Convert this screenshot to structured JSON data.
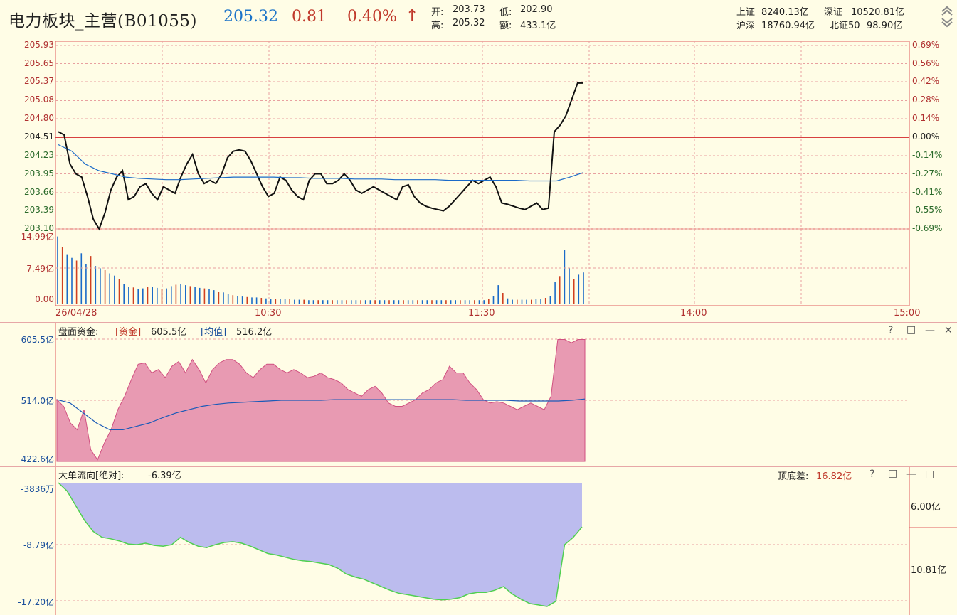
{
  "header": {
    "title": "电力板块_主营(B01055)",
    "price": "205.32",
    "change": "0.81",
    "change_pct": "0.40%",
    "arrow": "↑",
    "open_label": "开:",
    "open": "203.73",
    "low_label": "低:",
    "low": "202.90",
    "high_label": "高:",
    "high": "205.32",
    "amount_label": "额:",
    "amount": "433.1亿",
    "sh_label": "上证",
    "sh": "8240.13亿",
    "sz_label": "深证",
    "sz": "10520.81亿",
    "hs_label": "沪深",
    "hs": "18760.94亿",
    "bz_label": "北证50",
    "bz": "98.90亿"
  },
  "price_axis_left": [
    "205.93",
    "205.65",
    "205.37",
    "205.08",
    "204.80",
    "204.51",
    "204.23",
    "203.95",
    "203.66",
    "203.39",
    "203.10"
  ],
  "price_axis_right": [
    "0.69%",
    "0.56%",
    "0.42%",
    "0.28%",
    "0.14%",
    "0.00%",
    "-0.14%",
    "-0.27%",
    "-0.41%",
    "-0.55%",
    "-0.69%"
  ],
  "volume_axis": [
    "14.99亿",
    "7.49亿",
    "0.00"
  ],
  "time_axis": [
    "26/04/28",
    "10:30",
    "11:30",
    "14:00",
    "15:00"
  ],
  "fund_panel": {
    "label": "盘面资金:",
    "fund_label": "[资金]",
    "fund_value": "605.5亿",
    "avg_label": "[均值]",
    "avg_value": "516.2亿",
    "axis": [
      "605.5亿",
      "514.0亿",
      "422.6亿"
    ]
  },
  "big_order_panel": {
    "label": "大单流向[绝对]:",
    "value": "-6.39亿",
    "diff_label": "顶底差:",
    "diff_value": "16.82亿",
    "axis_left": [
      "-3836万",
      "-8.79亿",
      "-17.20亿"
    ],
    "axis_right": [
      "6.00亿",
      "10.81亿"
    ]
  },
  "buttons": {
    "help": "?",
    "restore": "□",
    "minimize": "—",
    "close": "✕"
  },
  "colors": {
    "accent_red": "#c0392b",
    "accent_blue": "#1a73c8",
    "fund_fill": "#e89ab2",
    "big_fill": "#bcbcee"
  },
  "chart_data": [
    {
      "type": "line",
      "title": "",
      "series": [
        {
          "name": "price",
          "values": [
            204.6,
            204.55,
            204.1,
            203.95,
            203.9,
            203.6,
            203.25,
            203.1,
            203.35,
            203.7,
            203.9,
            204.0,
            203.55,
            203.6,
            203.75,
            203.8,
            203.65,
            203.55,
            203.75,
            203.7,
            203.65,
            203.9,
            204.1,
            204.25,
            203.95,
            203.8,
            203.85,
            203.8,
            203.95,
            204.2,
            204.3,
            204.32,
            204.3,
            204.15,
            203.95,
            203.75,
            203.6,
            203.65,
            203.9,
            203.85,
            203.7,
            203.6,
            203.55,
            203.85,
            203.95,
            203.95,
            203.8,
            203.8,
            203.85,
            203.95,
            203.85,
            203.7,
            203.65,
            203.7,
            203.75,
            203.7,
            203.65,
            203.6,
            203.55,
            203.75,
            203.78,
            203.6,
            203.5,
            203.45,
            203.42,
            203.4,
            203.38,
            203.45,
            203.55,
            203.65,
            203.75,
            203.85,
            203.8,
            203.85,
            203.9,
            203.75,
            203.5,
            203.48,
            203.45,
            203.42,
            203.4,
            203.45,
            203.5,
            203.4,
            203.42,
            204.6,
            204.7,
            204.85,
            205.1,
            205.35,
            205.35
          ]
        },
        {
          "name": "avg",
          "values": [
            204.4,
            204.3,
            204.1,
            204.0,
            203.95,
            203.9,
            203.88,
            203.87,
            203.86,
            203.86,
            203.87,
            203.88,
            203.89,
            203.9,
            203.9,
            203.9,
            203.9,
            203.89,
            203.89,
            203.88,
            203.88,
            203.88,
            203.87,
            203.87,
            203.87,
            203.86,
            203.86,
            203.86,
            203.86,
            203.85,
            203.85,
            203.85,
            203.85,
            203.85,
            203.85,
            203.84,
            203.84,
            203.84,
            203.9,
            203.97
          ]
        }
      ],
      "ylim": [
        203.1,
        205.93
      ]
    },
    {
      "type": "bar",
      "title": "",
      "values": [
        14.9,
        12.5,
        11.0,
        10.2,
        9.6,
        11.2,
        8.8,
        10.6,
        8.4,
        7.9,
        7.5,
        6.8,
        6.3,
        5.5,
        4.4,
        3.9,
        3.7,
        3.4,
        3.5,
        3.8,
        3.9,
        3.6,
        3.3,
        3.5,
        4.0,
        4.3,
        4.5,
        4.2,
        4.0,
        3.8,
        3.6,
        3.5,
        3.3,
        3.1,
        2.8,
        2.6,
        2.2,
        2.0,
        1.8,
        1.7,
        1.6,
        1.5,
        1.5,
        1.4,
        1.3,
        1.2,
        1.2,
        1.1,
        1.1,
        1.1,
        1.0,
        1.0,
        1.0,
        0.9,
        0.9,
        0.9,
        0.9,
        0.9,
        0.9,
        0.9,
        0.9,
        0.9,
        0.9,
        0.9,
        0.9,
        0.9,
        0.9,
        0.9,
        0.9,
        0.9,
        0.9,
        0.9,
        0.9,
        0.9,
        0.9,
        0.9,
        0.9,
        0.9,
        0.9,
        0.9,
        0.9,
        0.9,
        0.9,
        0.9,
        0.9,
        0.9,
        0.9,
        0.9,
        0.9,
        0.9,
        0.9,
        1.2,
        1.8,
        4.2,
        2.5,
        1.3,
        1.0,
        1.0,
        1.0,
        1.0,
        1.0,
        1.1,
        1.2,
        1.4,
        1.8,
        5.0,
        6.2,
        12.0,
        8.0,
        5.5,
        6.5,
        7.0
      ],
      "ylim": [
        0,
        14.99
      ]
    },
    {
      "type": "area",
      "title": "",
      "series": [
        {
          "name": "资金",
          "values": [
            515,
            505,
            480,
            470,
            500,
            440,
            425,
            450,
            470,
            500,
            520,
            545,
            568,
            570,
            555,
            560,
            548,
            565,
            572,
            555,
            575,
            560,
            540,
            560,
            570,
            575,
            575,
            568,
            555,
            548,
            560,
            568,
            568,
            560,
            555,
            560,
            555,
            548,
            550,
            555,
            548,
            545,
            540,
            530,
            525,
            520,
            530,
            535,
            525,
            510,
            505,
            505,
            510,
            515,
            525,
            530,
            540,
            545,
            565,
            555,
            555,
            540,
            530,
            515,
            510,
            512,
            510,
            505,
            500,
            505,
            510,
            505,
            500,
            520,
            605,
            605,
            600,
            605,
            605
          ]
        },
        {
          "name": "均值",
          "values": [
            515,
            510,
            495,
            480,
            470,
            470,
            475,
            480,
            488,
            495,
            500,
            505,
            508,
            510,
            511,
            512,
            513,
            514,
            514,
            514,
            514,
            515,
            515,
            515,
            515,
            515,
            515,
            515,
            515,
            515,
            515,
            514,
            514,
            514,
            514,
            513,
            513,
            513,
            513,
            514,
            516
          ]
        }
      ],
      "ylim": [
        422.6,
        605.5
      ]
    },
    {
      "type": "area",
      "title": "",
      "values": [
        -0.38,
        -1.5,
        -3.5,
        -5.5,
        -7.0,
        -7.8,
        -8.0,
        -8.3,
        -8.7,
        -8.8,
        -8.6,
        -8.9,
        -9.0,
        -8.8,
        -7.8,
        -8.5,
        -9.0,
        -9.2,
        -8.8,
        -8.5,
        -8.4,
        -8.6,
        -9.0,
        -9.5,
        -10.0,
        -10.2,
        -10.5,
        -10.8,
        -11.0,
        -11.1,
        -11.3,
        -11.5,
        -12.0,
        -12.8,
        -13.2,
        -13.5,
        -14.0,
        -14.5,
        -15.0,
        -15.4,
        -15.6,
        -15.8,
        -16.0,
        -16.2,
        -16.3,
        -16.2,
        -16.0,
        -15.5,
        -15.3,
        -15.3,
        -15.0,
        -14.5,
        -15.5,
        -16.2,
        -16.8,
        -17.0,
        -17.2,
        -16.5,
        -8.8,
        -7.8,
        -6.39
      ],
      "ylim": [
        -17.2,
        -0.3836
      ]
    }
  ]
}
